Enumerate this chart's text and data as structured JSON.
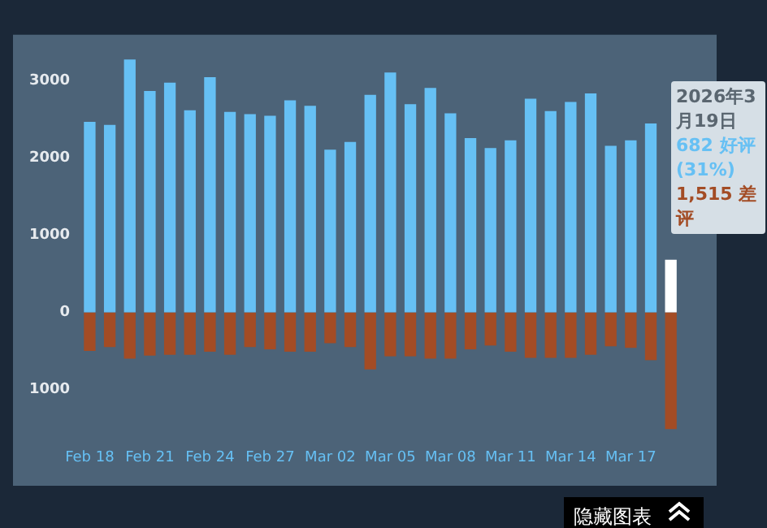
{
  "chart_data": {
    "type": "bar",
    "stacked": true,
    "grid": false,
    "legend": false,
    "categories": [
      "Feb 18",
      null,
      null,
      "Feb 21",
      null,
      null,
      "Feb 24",
      null,
      null,
      "Feb 27",
      null,
      null,
      "Mar 02",
      null,
      null,
      "Mar 05",
      null,
      null,
      "Mar 08",
      null,
      null,
      "Mar 11",
      null,
      null,
      "Mar 14",
      null,
      null,
      "Mar 17",
      null,
      null
    ],
    "series": [
      {
        "color": "#66c0f4",
        "colors": [
          "#66c0f4",
          "#66c0f4",
          "#66c0f4",
          "#66c0f4",
          "#66c0f4",
          "#66c0f4",
          "#66c0f4",
          "#66c0f4",
          "#66c0f4",
          "#66c0f4",
          "#66c0f4",
          "#66c0f4",
          "#66c0f4",
          "#66c0f4",
          "#66c0f4",
          "#66c0f4",
          "#66c0f4",
          "#66c0f4",
          "#66c0f4",
          "#66c0f4",
          "#66c0f4",
          "#66c0f4",
          "#66c0f4",
          "#66c0f4",
          "#66c0f4",
          "#66c0f4",
          "#66c0f4",
          "#66c0f4",
          "#66c0f4",
          "#ffffff"
        ],
        "values": [
          2470,
          2430,
          3280,
          2870,
          2980,
          2620,
          3050,
          2600,
          2570,
          2550,
          2750,
          2680,
          2110,
          2210,
          2820,
          3110,
          2700,
          2910,
          2580,
          2260,
          2130,
          2230,
          2770,
          2610,
          2730,
          2840,
          2160,
          2230,
          2450,
          682
        ]
      },
      {
        "color": "#a34c25",
        "values": [
          -500,
          -450,
          -600,
          -560,
          -550,
          -550,
          -510,
          -550,
          -450,
          -480,
          -510,
          -510,
          -400,
          -450,
          -740,
          -570,
          -570,
          -600,
          -600,
          -480,
          -430,
          -510,
          -590,
          -590,
          -590,
          -550,
          -440,
          -460,
          -620,
          -1515
        ]
      }
    ],
    "ylim": [
      -1600,
      3600
    ],
    "yticks": [
      {
        "value": -1000,
        "label": "1000"
      },
      0,
      1000,
      2000,
      3000
    ],
    "annotations": [
      "2026年3月19日",
      "682 好评 (31%)",
      "1,515 差评",
      "隐藏图表"
    ]
  }
}
